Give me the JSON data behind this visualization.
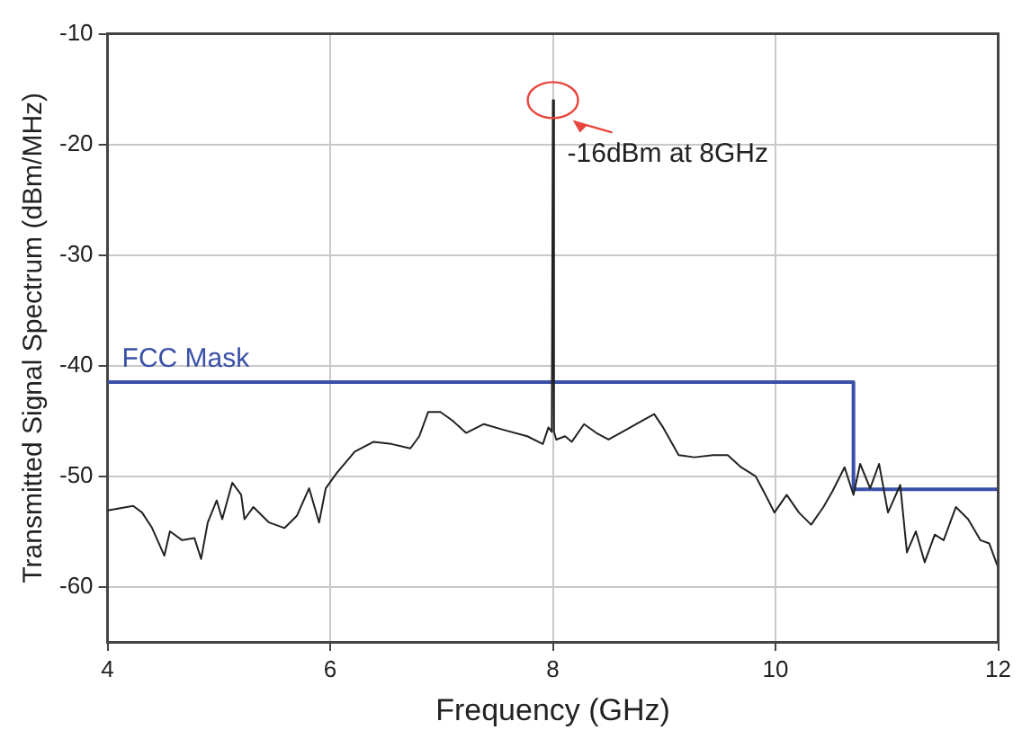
{
  "chart_data": {
    "type": "line",
    "xlabel": "Frequency (GHz)",
    "ylabel": "Transmitted Signal Spectrum (dBm/MHz)",
    "xlim": [
      4,
      12
    ],
    "xticks": [
      4,
      6,
      8,
      10,
      12
    ],
    "ylim": [
      -65,
      -10
    ],
    "yticks": [
      -60,
      -50,
      -40,
      -30,
      -20,
      -10
    ],
    "grid": true,
    "legend": false,
    "marker": "none",
    "line_style": "solid",
    "annotations": [
      {
        "text": "-16dBm at 8GHz",
        "x": 8,
        "y": -16
      }
    ],
    "series": [
      {
        "color": "#222222",
        "x": [
          4.0,
          4.23,
          4.31,
          4.4,
          4.51,
          4.56,
          4.67,
          4.78,
          4.84,
          4.9,
          4.98,
          5.03,
          5.12,
          5.2,
          5.23,
          5.31,
          5.45,
          5.59,
          5.7,
          5.81,
          5.9,
          5.96,
          6.06,
          6.22,
          6.39,
          6.55,
          6.72,
          6.8,
          6.88,
          6.99,
          7.1,
          7.22,
          7.38,
          7.55,
          7.77,
          7.91,
          7.96,
          7.99,
          8.0,
          8.01,
          8.03,
          8.11,
          8.17,
          8.28,
          8.39,
          8.5,
          8.66,
          8.8,
          8.91,
          8.99,
          9.13,
          9.27,
          9.44,
          9.57,
          9.69,
          9.82,
          9.91,
          9.99,
          10.1,
          10.21,
          10.32,
          10.43,
          10.51,
          10.62,
          10.7,
          10.76,
          10.85,
          10.93,
          11.01,
          11.12,
          11.18,
          11.26,
          11.34,
          11.43,
          11.51,
          11.62,
          11.73,
          11.84,
          11.92,
          12.0
        ],
        "values": [
          -53.1,
          -52.7,
          -53.3,
          -54.7,
          -57.2,
          -55,
          -55.8,
          -55.6,
          -57.5,
          -54.2,
          -52.2,
          -53.9,
          -50.6,
          -51.7,
          -53.9,
          -52.8,
          -54.2,
          -54.7,
          -53.6,
          -51.1,
          -54.2,
          -51.1,
          -49.7,
          -47.8,
          -46.9,
          -47.1,
          -47.5,
          -46.4,
          -44.2,
          -44.2,
          -45,
          -46.1,
          -45.3,
          -45.8,
          -46.4,
          -47.1,
          -45.6,
          -46,
          -16,
          -46,
          -46.7,
          -46.4,
          -46.9,
          -45.3,
          -46.1,
          -46.7,
          -45.8,
          -45,
          -44.4,
          -45.6,
          -48.1,
          -48.3,
          -48.1,
          -48.1,
          -49.2,
          -50,
          -51.7,
          -53.3,
          -51.7,
          -53.3,
          -54.4,
          -52.8,
          -51.4,
          -49.2,
          -51.7,
          -48.9,
          -51.1,
          -48.9,
          -53.3,
          -50.8,
          -56.9,
          -55,
          -57.8,
          -55.3,
          -55.8,
          -52.8,
          -53.9,
          -55.8,
          -56.1,
          -58.3
        ]
      },
      {
        "name": "FCC Mask",
        "color": "#3a50a8",
        "x": [
          4,
          10.7,
          10.7,
          12
        ],
        "values": [
          -41.5,
          -41.5,
          -51.2,
          -51.2
        ]
      }
    ]
  }
}
